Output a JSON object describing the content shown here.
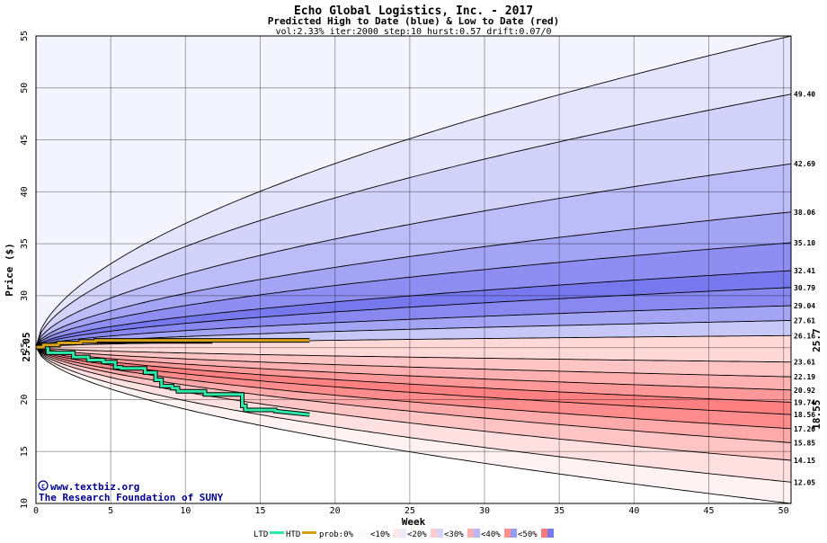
{
  "chart_data": {
    "type": "area",
    "title": "Echo Global Logistics, Inc. - 2017",
    "subtitle": "Predicted High to Date (blue) &  Low to Date (red)",
    "params": "vol:2.33% iter:2000 step:10 hurst:0.57 drift:0.07/0",
    "xlabel": "Week",
    "ylabel": "Price ($)",
    "xlim": [
      0,
      50.5
    ],
    "ylim": [
      10,
      55
    ],
    "x_ticks": [
      0,
      5,
      10,
      15,
      20,
      25,
      30,
      35,
      40,
      45,
      50
    ],
    "y_ticks": [
      10,
      15,
      20,
      25,
      30,
      35,
      40,
      45,
      50,
      55
    ],
    "grid": true,
    "start_price": 25.05,
    "start_label": "25.05",
    "high_percentile_finals": [
      55,
      49.4,
      42.69,
      38.06,
      35.1,
      32.41,
      30.79,
      29.04,
      27.61,
      26.16
    ],
    "low_percentile_finals": [
      23.61,
      22.19,
      20.92,
      19.74,
      18.56,
      17.2,
      15.85,
      14.15,
      12.05,
      10
    ],
    "right_labels": [
      "49.40",
      "42.69",
      "38.06",
      "35.10",
      "32.41",
      "30.79",
      "29.04",
      "27.61",
      "26.16",
      "23.61",
      "22.19",
      "20.92",
      "19.74",
      "18.56",
      "17.20",
      "15.85",
      "14.15",
      "12.05"
    ],
    "htd_series": {
      "name": "HTD",
      "color": "#d4a017",
      "x": [
        0,
        0.5,
        0.5,
        1.5,
        1.5,
        3,
        3,
        4,
        4,
        18.3
      ],
      "y": [
        25.05,
        25.05,
        25.25,
        25.25,
        25.45,
        25.45,
        25.6,
        25.6,
        25.7,
        25.7
      ],
      "end_label": "25.7"
    },
    "htd_secondary_end": 11.8,
    "ltd_series": {
      "name": "LTD",
      "color": "#2ee8a8",
      "x": [
        0,
        0.8,
        0.8,
        2.5,
        2.5,
        3.5,
        3.5,
        4.5,
        4.5,
        5.3,
        5.3,
        5.7,
        5.7,
        7.3,
        7.3,
        8,
        8,
        8.4,
        8.4,
        9.1,
        9.1,
        9.5,
        9.5,
        11.3,
        11.3,
        13.8,
        13.8,
        14,
        14,
        16,
        16,
        18.3
      ],
      "y": [
        25.05,
        25.05,
        24.5,
        24.5,
        24.1,
        24.1,
        23.8,
        23.8,
        23.6,
        23.6,
        23.1,
        23.1,
        23.0,
        23.0,
        22.6,
        22.6,
        21.9,
        21.9,
        21.3,
        21.3,
        21.1,
        21.1,
        20.8,
        20.8,
        20.5,
        20.5,
        19.4,
        19.4,
        19.0,
        19.0,
        18.9,
        18.55
      ],
      "end_label": "18.55"
    },
    "credit_line1": "www.textbiz.org",
    "credit_line2": "The Research Foundation of SUNY",
    "legend": {
      "ltd": "LTD",
      "htd": "HTD",
      "prob": "prob:0%",
      "bins": [
        "<10%",
        "<20%",
        "<30%",
        "<40%",
        "<50%"
      ]
    },
    "colors": {
      "blue_bands": [
        "#f4f4fe",
        "#e4e4fc",
        "#d2d2fa",
        "#bcbcf8",
        "#a4a4f5",
        "#8e8ef2",
        "#7878ee",
        "#8888f0",
        "#a4a4f4",
        "#c8c8f8"
      ],
      "red_bands": [
        "#ffd8d8",
        "#ffc4c4",
        "#ffb0b0",
        "#ff9898",
        "#ff8080",
        "#ff8c8c",
        "#ffaaaa",
        "#ffc4c4",
        "#ffe0e0",
        "#fff2f2"
      ],
      "htd": "#d4a017",
      "ltd": "#2ee8a8",
      "credit": "#00008b"
    }
  }
}
